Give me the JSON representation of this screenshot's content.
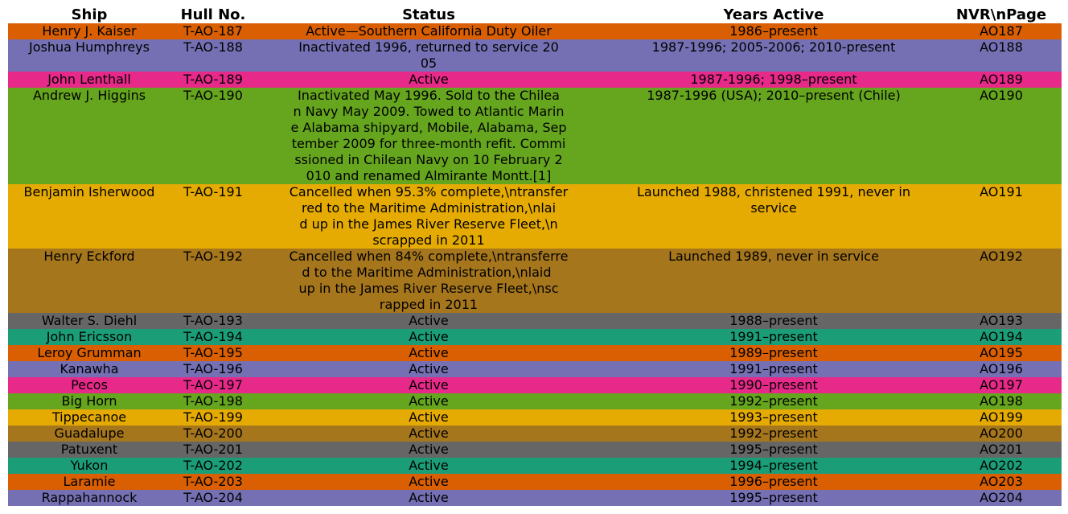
{
  "chart_data": {
    "type": "table",
    "columns": [
      "Ship",
      "Hull No.",
      "Status",
      "Years Active",
      "NVR\\nPage"
    ],
    "rows": [
      {
        "color": "#d95f02",
        "cells": [
          "Henry J. Kaiser",
          "T-AO-187",
          "Active—Southern California Duty Oiler",
          "1986–present",
          "AO187"
        ]
      },
      {
        "color": "#7570b3",
        "cells": [
          "Joshua Humphreys",
          "T-AO-188",
          "Inactivated 1996, returned to service 20\n05",
          "1987-1996; 2005-2006; 2010-present",
          "AO188"
        ]
      },
      {
        "color": "#e7298a",
        "cells": [
          "John Lenthall",
          "T-AO-189",
          "Active",
          "1987-1996; 1998–present",
          "AO189"
        ]
      },
      {
        "color": "#66a61e",
        "cells": [
          "Andrew J. Higgins",
          "T-AO-190",
          "Inactivated May 1996. Sold to the Chilea\nn Navy May 2009. Towed to Atlantic Marin\ne Alabama shipyard, Mobile, Alabama, Sep\ntember 2009 for three-month refit. Commi\nssioned in Chilean Navy on 10 February 2\n010 and renamed Almirante Montt.[1]",
          "1987-1996 (USA); 2010–present (Chile)",
          "AO190"
        ]
      },
      {
        "color": "#e6ab02",
        "cells": [
          "Benjamin Isherwood",
          "T-AO-191",
          "Cancelled when 95.3% complete,\\ntransfer\nred to the Maritime Administration,\\nlai\nd up in the James River Reserve Fleet,\\n\nscrapped in 2011",
          "Launched 1988, christened 1991, never in\nservice",
          "AO191"
        ]
      },
      {
        "color": "#a6761d",
        "cells": [
          "Henry Eckford",
          "T-AO-192",
          "Cancelled when 84% complete,\\ntransferre\nd to the Maritime Administration,\\nlaid \nup in the James River Reserve Fleet,\\nsc\nrapped in 2011",
          "Launched 1989, never in service",
          "AO192"
        ]
      },
      {
        "color": "#666666",
        "cells": [
          "Walter S. Diehl",
          "T-AO-193",
          "Active",
          "1988–present",
          "AO193"
        ]
      },
      {
        "color": "#1b9e77",
        "cells": [
          "John Ericsson",
          "T-AO-194",
          "Active",
          "1991–present",
          "AO194"
        ]
      },
      {
        "color": "#d95f02",
        "cells": [
          "Leroy Grumman",
          "T-AO-195",
          "Active",
          "1989–present",
          "AO195"
        ]
      },
      {
        "color": "#7570b3",
        "cells": [
          "Kanawha",
          "T-AO-196",
          "Active",
          "1991–present",
          "AO196"
        ]
      },
      {
        "color": "#e7298a",
        "cells": [
          "Pecos",
          "T-AO-197",
          "Active",
          "1990–present",
          "AO197"
        ]
      },
      {
        "color": "#66a61e",
        "cells": [
          "Big Horn",
          "T-AO-198",
          "Active",
          "1992–present",
          "AO198"
        ]
      },
      {
        "color": "#e6ab02",
        "cells": [
          "Tippecanoe",
          "T-AO-199",
          "Active",
          "1993–present",
          "AO199"
        ]
      },
      {
        "color": "#a6761d",
        "cells": [
          "Guadalupe",
          "T-AO-200",
          "Active",
          "1992–present",
          "AO200"
        ]
      },
      {
        "color": "#666666",
        "cells": [
          "Patuxent",
          "T-AO-201",
          "Active",
          "1995–present",
          "AO201"
        ]
      },
      {
        "color": "#1b9e77",
        "cells": [
          "Yukon",
          "T-AO-202",
          "Active",
          "1994–present",
          "AO202"
        ]
      },
      {
        "color": "#d95f02",
        "cells": [
          "Laramie",
          "T-AO-203",
          "Active",
          "1996–present",
          "AO203"
        ]
      },
      {
        "color": "#7570b3",
        "cells": [
          "Rappahannock",
          "T-AO-204",
          "Active",
          "1995–present",
          "AO204"
        ]
      }
    ]
  }
}
